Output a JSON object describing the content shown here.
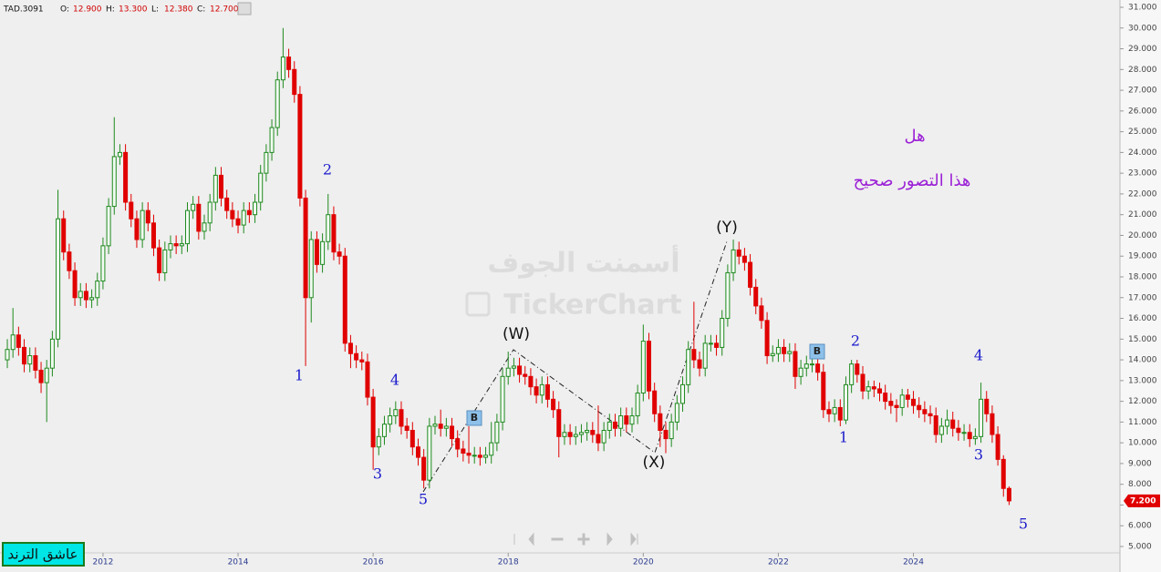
{
  "chart_data": {
    "type": "candlestick",
    "symbol": "TAD.3091",
    "info": [
      [
        "O:",
        "12.900"
      ],
      [
        "H:",
        "13.300"
      ],
      [
        "L:",
        "12.380"
      ],
      [
        "C:",
        "12.700"
      ]
    ],
    "ylim": [
      5,
      31
    ],
    "xlim": [
      -1.3,
      197.7
    ],
    "yticks": [
      {
        "value": 5,
        "label": "5.000"
      },
      {
        "value": 6,
        "label": "6.000"
      },
      {
        "value": 7,
        "label": "7.000"
      },
      {
        "value": 8,
        "label": "8.000"
      },
      {
        "value": 9,
        "label": "9.000"
      },
      {
        "value": 10,
        "label": "10.000"
      },
      {
        "value": 11,
        "label": "11.000"
      },
      {
        "value": 12,
        "label": "12.000"
      },
      {
        "value": 13,
        "label": "13.000"
      },
      {
        "value": 14,
        "label": "14.000"
      },
      {
        "value": 15,
        "label": "15.000"
      },
      {
        "value": 16,
        "label": "16.000"
      },
      {
        "value": 17,
        "label": "17.000"
      },
      {
        "value": 18,
        "label": "18.000"
      },
      {
        "value": 19,
        "label": "19.000"
      },
      {
        "value": 20,
        "label": "20.000"
      },
      {
        "value": 21,
        "label": "21.000"
      },
      {
        "value": 22,
        "label": "22.000"
      },
      {
        "value": 23,
        "label": "23.000"
      },
      {
        "value": 24,
        "label": "24.000"
      },
      {
        "value": 25,
        "label": "25.000"
      },
      {
        "value": 26,
        "label": "26.000"
      },
      {
        "value": 27,
        "label": "27.000"
      },
      {
        "value": 28,
        "label": "28.000"
      },
      {
        "value": 29,
        "label": "29.000"
      },
      {
        "value": 30,
        "label": "30.000"
      },
      {
        "value": 31,
        "label": "31.000"
      }
    ],
    "xticks": [
      {
        "value": 17,
        "label": "2012"
      },
      {
        "value": 41,
        "label": "2014"
      },
      {
        "value": 65,
        "label": "2016"
      },
      {
        "value": 89,
        "label": "2018"
      },
      {
        "value": 113,
        "label": "2020"
      },
      {
        "value": 137,
        "label": "2022"
      },
      {
        "value": 161,
        "label": "2024"
      }
    ],
    "up_color": "#1f8a1f",
    "down_color": "#e00000",
    "ohlc": [
      [
        14.0,
        15.0,
        13.6,
        14.5
      ],
      [
        14.5,
        16.5,
        14.1,
        15.2
      ],
      [
        15.2,
        15.6,
        14.2,
        14.6
      ],
      [
        14.6,
        15.0,
        13.4,
        13.8
      ],
      [
        13.8,
        14.6,
        13.4,
        14.2
      ],
      [
        14.2,
        14.6,
        13.1,
        13.5
      ],
      [
        13.5,
        13.9,
        12.4,
        12.9
      ],
      [
        12.9,
        14.0,
        11.0,
        13.6
      ],
      [
        13.6,
        15.4,
        13.2,
        15.0
      ],
      [
        15.0,
        22.2,
        14.6,
        20.8
      ],
      [
        20.8,
        21.2,
        18.8,
        19.2
      ],
      [
        19.2,
        19.6,
        17.9,
        18.3
      ],
      [
        18.3,
        18.7,
        16.6,
        17.0
      ],
      [
        17.0,
        17.7,
        16.6,
        17.3
      ],
      [
        17.3,
        17.7,
        16.5,
        16.9
      ],
      [
        16.9,
        17.4,
        16.5,
        17.0
      ],
      [
        17.0,
        18.2,
        16.6,
        17.8
      ],
      [
        17.8,
        19.9,
        17.4,
        19.5
      ],
      [
        19.5,
        21.8,
        19.1,
        21.4
      ],
      [
        21.4,
        25.7,
        21.0,
        23.8
      ],
      [
        23.8,
        24.4,
        23.4,
        24.0
      ],
      [
        24.0,
        24.4,
        21.2,
        21.6
      ],
      [
        21.6,
        22.0,
        20.4,
        20.8
      ],
      [
        20.8,
        21.2,
        19.4,
        19.8
      ],
      [
        19.8,
        21.6,
        19.4,
        21.2
      ],
      [
        21.2,
        21.6,
        20.2,
        20.6
      ],
      [
        20.6,
        21.0,
        19.0,
        19.4
      ],
      [
        19.4,
        19.8,
        17.8,
        18.2
      ],
      [
        18.2,
        19.7,
        17.8,
        19.3
      ],
      [
        19.3,
        20.0,
        18.9,
        19.6
      ],
      [
        19.6,
        20.0,
        19.1,
        19.5
      ],
      [
        19.5,
        20.0,
        19.1,
        19.6
      ],
      [
        19.6,
        21.6,
        19.2,
        21.2
      ],
      [
        21.2,
        21.9,
        20.8,
        21.5
      ],
      [
        21.5,
        21.9,
        19.8,
        20.2
      ],
      [
        20.2,
        21.0,
        19.8,
        20.6
      ],
      [
        20.6,
        22.0,
        20.2,
        21.6
      ],
      [
        21.6,
        23.3,
        21.2,
        22.9
      ],
      [
        22.9,
        23.3,
        21.4,
        21.8
      ],
      [
        21.8,
        22.2,
        20.8,
        21.2
      ],
      [
        21.2,
        21.6,
        20.4,
        20.8
      ],
      [
        20.8,
        21.2,
        20.1,
        20.5
      ],
      [
        20.5,
        21.6,
        20.1,
        21.2
      ],
      [
        21.2,
        21.6,
        20.6,
        21.0
      ],
      [
        21.0,
        22.0,
        20.6,
        21.6
      ],
      [
        21.6,
        23.4,
        21.2,
        23.0
      ],
      [
        23.0,
        24.4,
        22.6,
        24.0
      ],
      [
        24.0,
        25.6,
        23.6,
        25.2
      ],
      [
        25.2,
        27.9,
        24.8,
        27.5
      ],
      [
        27.5,
        30.0,
        27.1,
        28.6
      ],
      [
        28.6,
        29.0,
        27.6,
        28.0
      ],
      [
        28.0,
        28.4,
        26.4,
        26.8
      ],
      [
        26.8,
        27.2,
        21.4,
        21.8
      ],
      [
        21.8,
        22.2,
        13.7,
        17.0
      ],
      [
        17.0,
        20.2,
        15.8,
        19.8
      ],
      [
        19.8,
        20.2,
        18.2,
        18.6
      ],
      [
        18.6,
        20.1,
        18.2,
        19.7
      ],
      [
        19.7,
        22.0,
        19.3,
        21.0
      ],
      [
        21.0,
        21.4,
        18.8,
        19.2
      ],
      [
        19.2,
        19.6,
        18.6,
        19.0
      ],
      [
        19.0,
        19.4,
        14.4,
        14.8
      ],
      [
        14.8,
        15.2,
        13.6,
        14.3
      ],
      [
        14.3,
        14.7,
        13.6,
        14.0
      ],
      [
        14.0,
        14.4,
        13.5,
        13.9
      ],
      [
        13.9,
        14.3,
        11.8,
        12.2
      ],
      [
        12.2,
        12.6,
        8.7,
        9.8
      ],
      [
        9.8,
        10.7,
        9.4,
        10.3
      ],
      [
        10.3,
        11.3,
        9.9,
        10.9
      ],
      [
        10.9,
        11.7,
        10.5,
        11.3
      ],
      [
        11.3,
        12.0,
        10.9,
        11.6
      ],
      [
        11.6,
        12.0,
        10.4,
        10.8
      ],
      [
        10.8,
        11.2,
        10.2,
        10.6
      ],
      [
        10.6,
        11.0,
        9.4,
        9.8
      ],
      [
        9.8,
        10.2,
        8.9,
        9.3
      ],
      [
        9.3,
        9.7,
        7.8,
        8.2
      ],
      [
        8.2,
        11.2,
        7.8,
        10.8
      ],
      [
        10.8,
        11.3,
        10.4,
        10.9
      ],
      [
        10.9,
        11.6,
        10.3,
        10.7
      ],
      [
        10.7,
        11.2,
        10.3,
        10.8
      ],
      [
        10.8,
        11.2,
        9.8,
        10.2
      ],
      [
        10.2,
        10.6,
        9.3,
        9.7
      ],
      [
        9.7,
        10.1,
        9.1,
        9.5
      ],
      [
        9.5,
        10.8,
        9.0,
        9.4
      ],
      [
        9.4,
        9.8,
        9.0,
        9.4
      ],
      [
        9.4,
        9.8,
        8.9,
        9.3
      ],
      [
        9.3,
        9.8,
        9.0,
        9.4
      ],
      [
        9.4,
        11.0,
        9.0,
        10.0
      ],
      [
        10.0,
        11.4,
        9.6,
        11.0
      ],
      [
        11.0,
        13.6,
        10.6,
        13.2
      ],
      [
        13.2,
        14.4,
        12.8,
        13.6
      ],
      [
        13.6,
        14.1,
        13.2,
        13.7
      ],
      [
        13.7,
        14.1,
        12.9,
        13.3
      ],
      [
        13.3,
        13.7,
        12.8,
        13.2
      ],
      [
        13.2,
        13.6,
        12.3,
        12.7
      ],
      [
        12.7,
        13.1,
        11.9,
        12.3
      ],
      [
        12.3,
        13.2,
        11.9,
        12.8
      ],
      [
        12.8,
        13.2,
        11.7,
        12.1
      ],
      [
        12.1,
        12.5,
        11.2,
        11.6
      ],
      [
        11.6,
        12.0,
        9.3,
        10.3
      ],
      [
        10.3,
        10.9,
        9.9,
        10.5
      ],
      [
        10.5,
        10.9,
        9.9,
        10.3
      ],
      [
        10.3,
        10.8,
        9.9,
        10.4
      ],
      [
        10.4,
        10.9,
        10.0,
        10.5
      ],
      [
        10.5,
        11.0,
        10.1,
        10.6
      ],
      [
        10.6,
        11.0,
        10.0,
        10.4
      ],
      [
        10.4,
        11.8,
        9.6,
        10.0
      ],
      [
        10.0,
        11.0,
        9.6,
        10.6
      ],
      [
        10.6,
        11.4,
        10.2,
        11.0
      ],
      [
        11.0,
        11.4,
        10.3,
        10.7
      ],
      [
        10.7,
        11.7,
        10.3,
        11.3
      ],
      [
        11.3,
        11.7,
        10.5,
        10.9
      ],
      [
        10.9,
        11.7,
        10.5,
        11.3
      ],
      [
        11.3,
        12.8,
        10.9,
        12.4
      ],
      [
        12.4,
        15.7,
        12.0,
        14.9
      ],
      [
        14.9,
        15.3,
        12.1,
        12.5
      ],
      [
        12.5,
        12.9,
        11.0,
        11.4
      ],
      [
        11.4,
        11.8,
        9.8,
        10.6
      ],
      [
        10.6,
        11.0,
        9.5,
        10.2
      ],
      [
        10.2,
        11.4,
        9.8,
        11.0
      ],
      [
        11.0,
        12.3,
        10.6,
        11.9
      ],
      [
        11.9,
        13.2,
        11.5,
        12.8
      ],
      [
        12.8,
        14.9,
        12.4,
        14.5
      ],
      [
        14.5,
        16.8,
        13.6,
        14.0
      ],
      [
        14.0,
        14.4,
        13.2,
        13.6
      ],
      [
        13.6,
        15.2,
        13.2,
        14.8
      ],
      [
        14.8,
        15.2,
        14.4,
        14.8
      ],
      [
        14.8,
        15.2,
        14.2,
        14.6
      ],
      [
        14.6,
        16.4,
        14.2,
        16.0
      ],
      [
        16.0,
        18.6,
        15.6,
        18.2
      ],
      [
        18.2,
        19.8,
        17.8,
        19.3
      ],
      [
        19.3,
        19.7,
        18.6,
        19.0
      ],
      [
        19.0,
        19.4,
        18.3,
        18.7
      ],
      [
        18.7,
        19.1,
        17.1,
        17.5
      ],
      [
        17.5,
        17.9,
        16.2,
        16.6
      ],
      [
        16.6,
        17.0,
        15.5,
        15.9
      ],
      [
        15.9,
        16.3,
        13.8,
        14.2
      ],
      [
        14.2,
        14.7,
        13.9,
        14.3
      ],
      [
        14.3,
        15.0,
        13.9,
        14.6
      ],
      [
        14.6,
        15.0,
        13.9,
        14.3
      ],
      [
        14.3,
        14.8,
        13.9,
        14.4
      ],
      [
        14.4,
        14.8,
        12.6,
        13.2
      ],
      [
        13.2,
        14.0,
        12.8,
        13.6
      ],
      [
        13.6,
        14.2,
        13.2,
        13.8
      ],
      [
        13.8,
        14.6,
        13.4,
        13.8
      ],
      [
        13.8,
        14.2,
        13.0,
        13.4
      ],
      [
        13.4,
        13.8,
        11.2,
        11.6
      ],
      [
        11.6,
        12.0,
        11.0,
        11.4
      ],
      [
        11.4,
        12.1,
        11.0,
        11.7
      ],
      [
        11.7,
        12.1,
        10.8,
        11.1
      ],
      [
        11.1,
        13.2,
        10.9,
        12.8
      ],
      [
        12.8,
        14.0,
        12.4,
        13.8
      ],
      [
        13.8,
        14.0,
        12.9,
        13.3
      ],
      [
        13.3,
        13.7,
        12.1,
        12.5
      ],
      [
        12.5,
        13.0,
        12.1,
        12.7
      ],
      [
        12.7,
        13.0,
        12.2,
        12.6
      ],
      [
        12.6,
        12.9,
        12.0,
        12.4
      ],
      [
        12.4,
        12.8,
        11.6,
        12.0
      ],
      [
        12.0,
        12.4,
        11.4,
        11.8
      ],
      [
        11.8,
        12.1,
        11.0,
        11.7
      ],
      [
        11.7,
        12.6,
        11.3,
        12.3
      ],
      [
        12.3,
        12.6,
        11.7,
        12.1
      ],
      [
        12.1,
        12.5,
        11.4,
        11.8
      ],
      [
        11.8,
        12.2,
        11.2,
        11.6
      ],
      [
        11.6,
        12.0,
        11.0,
        11.4
      ],
      [
        11.4,
        11.8,
        10.9,
        11.3
      ],
      [
        11.3,
        11.7,
        10.0,
        10.4
      ],
      [
        10.4,
        11.2,
        10.0,
        10.8
      ],
      [
        10.8,
        11.6,
        10.4,
        11.1
      ],
      [
        11.1,
        11.5,
        10.3,
        10.7
      ],
      [
        10.7,
        11.1,
        10.1,
        10.5
      ],
      [
        10.5,
        10.9,
        10.1,
        10.5
      ],
      [
        10.5,
        10.9,
        9.8,
        10.2
      ],
      [
        10.2,
        10.7,
        9.9,
        10.3
      ],
      [
        10.3,
        12.9,
        10.0,
        12.1
      ],
      [
        12.1,
        12.5,
        11.0,
        11.4
      ],
      [
        11.4,
        11.8,
        10.0,
        10.4
      ],
      [
        10.4,
        10.8,
        8.9,
        9.2
      ],
      [
        9.2,
        9.4,
        7.4,
        7.8
      ],
      [
        7.8,
        7.9,
        7.0,
        7.2
      ]
    ],
    "last_price": {
      "value": 7.2,
      "label": "7.200"
    },
    "annotations": [
      "1",
      "2",
      "3",
      "4",
      "5",
      "(W)",
      "(X)",
      "(Y)",
      "1",
      "2",
      "3",
      "4",
      "5",
      "B",
      "B"
    ],
    "question": [
      "هل",
      "هذا التصور صحيح"
    ],
    "watermark": [
      "أسمنت الجوف",
      "TickerChart"
    ],
    "badge": "عاشق الترند"
  }
}
